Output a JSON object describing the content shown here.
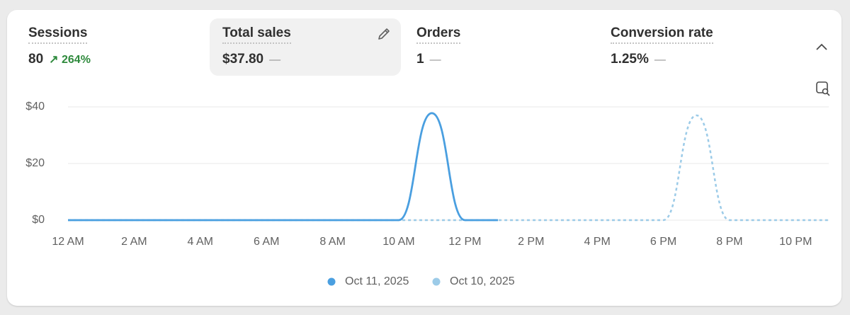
{
  "metrics": [
    {
      "label": "Sessions",
      "value": "80",
      "change": "264%"
    },
    {
      "label": "Total sales",
      "value": "$37.80",
      "change": "—"
    },
    {
      "label": "Orders",
      "value": "1",
      "change": "—"
    },
    {
      "label": "Conversion rate",
      "value": "1.25%",
      "change": "—"
    }
  ],
  "chart_data": {
    "type": "line",
    "categories": [
      "12 AM",
      null,
      "2 AM",
      null,
      "4 AM",
      null,
      "6 AM",
      null,
      "8 AM",
      null,
      "10 AM",
      null,
      "12 PM",
      null,
      "2 PM",
      null,
      "4 PM",
      null,
      "6 PM",
      null,
      "8 PM",
      null,
      "10 PM",
      null
    ],
    "series": [
      {
        "name": "Oct 11, 2025",
        "color": "#4a9fe0",
        "style": "solid",
        "values": [
          0,
          0,
          0,
          0,
          0,
          0,
          0,
          0,
          0,
          0,
          0,
          37.8,
          0,
          0,
          null,
          null,
          null,
          null,
          null,
          null,
          null,
          null,
          null,
          null
        ]
      },
      {
        "name": "Oct 10, 2025",
        "color": "#9ccbe8",
        "style": "dashed",
        "values": [
          0,
          0,
          0,
          0,
          0,
          0,
          0,
          0,
          0,
          0,
          0,
          0,
          0,
          0,
          0,
          0,
          0,
          0,
          0,
          37,
          0,
          0,
          0,
          0
        ]
      }
    ],
    "ylim": [
      0,
      40
    ],
    "yticks": [
      {
        "value": 0,
        "label": "$0"
      },
      {
        "value": 20,
        "label": "$20"
      },
      {
        "value": 40,
        "label": "$40"
      }
    ],
    "grid": true
  }
}
